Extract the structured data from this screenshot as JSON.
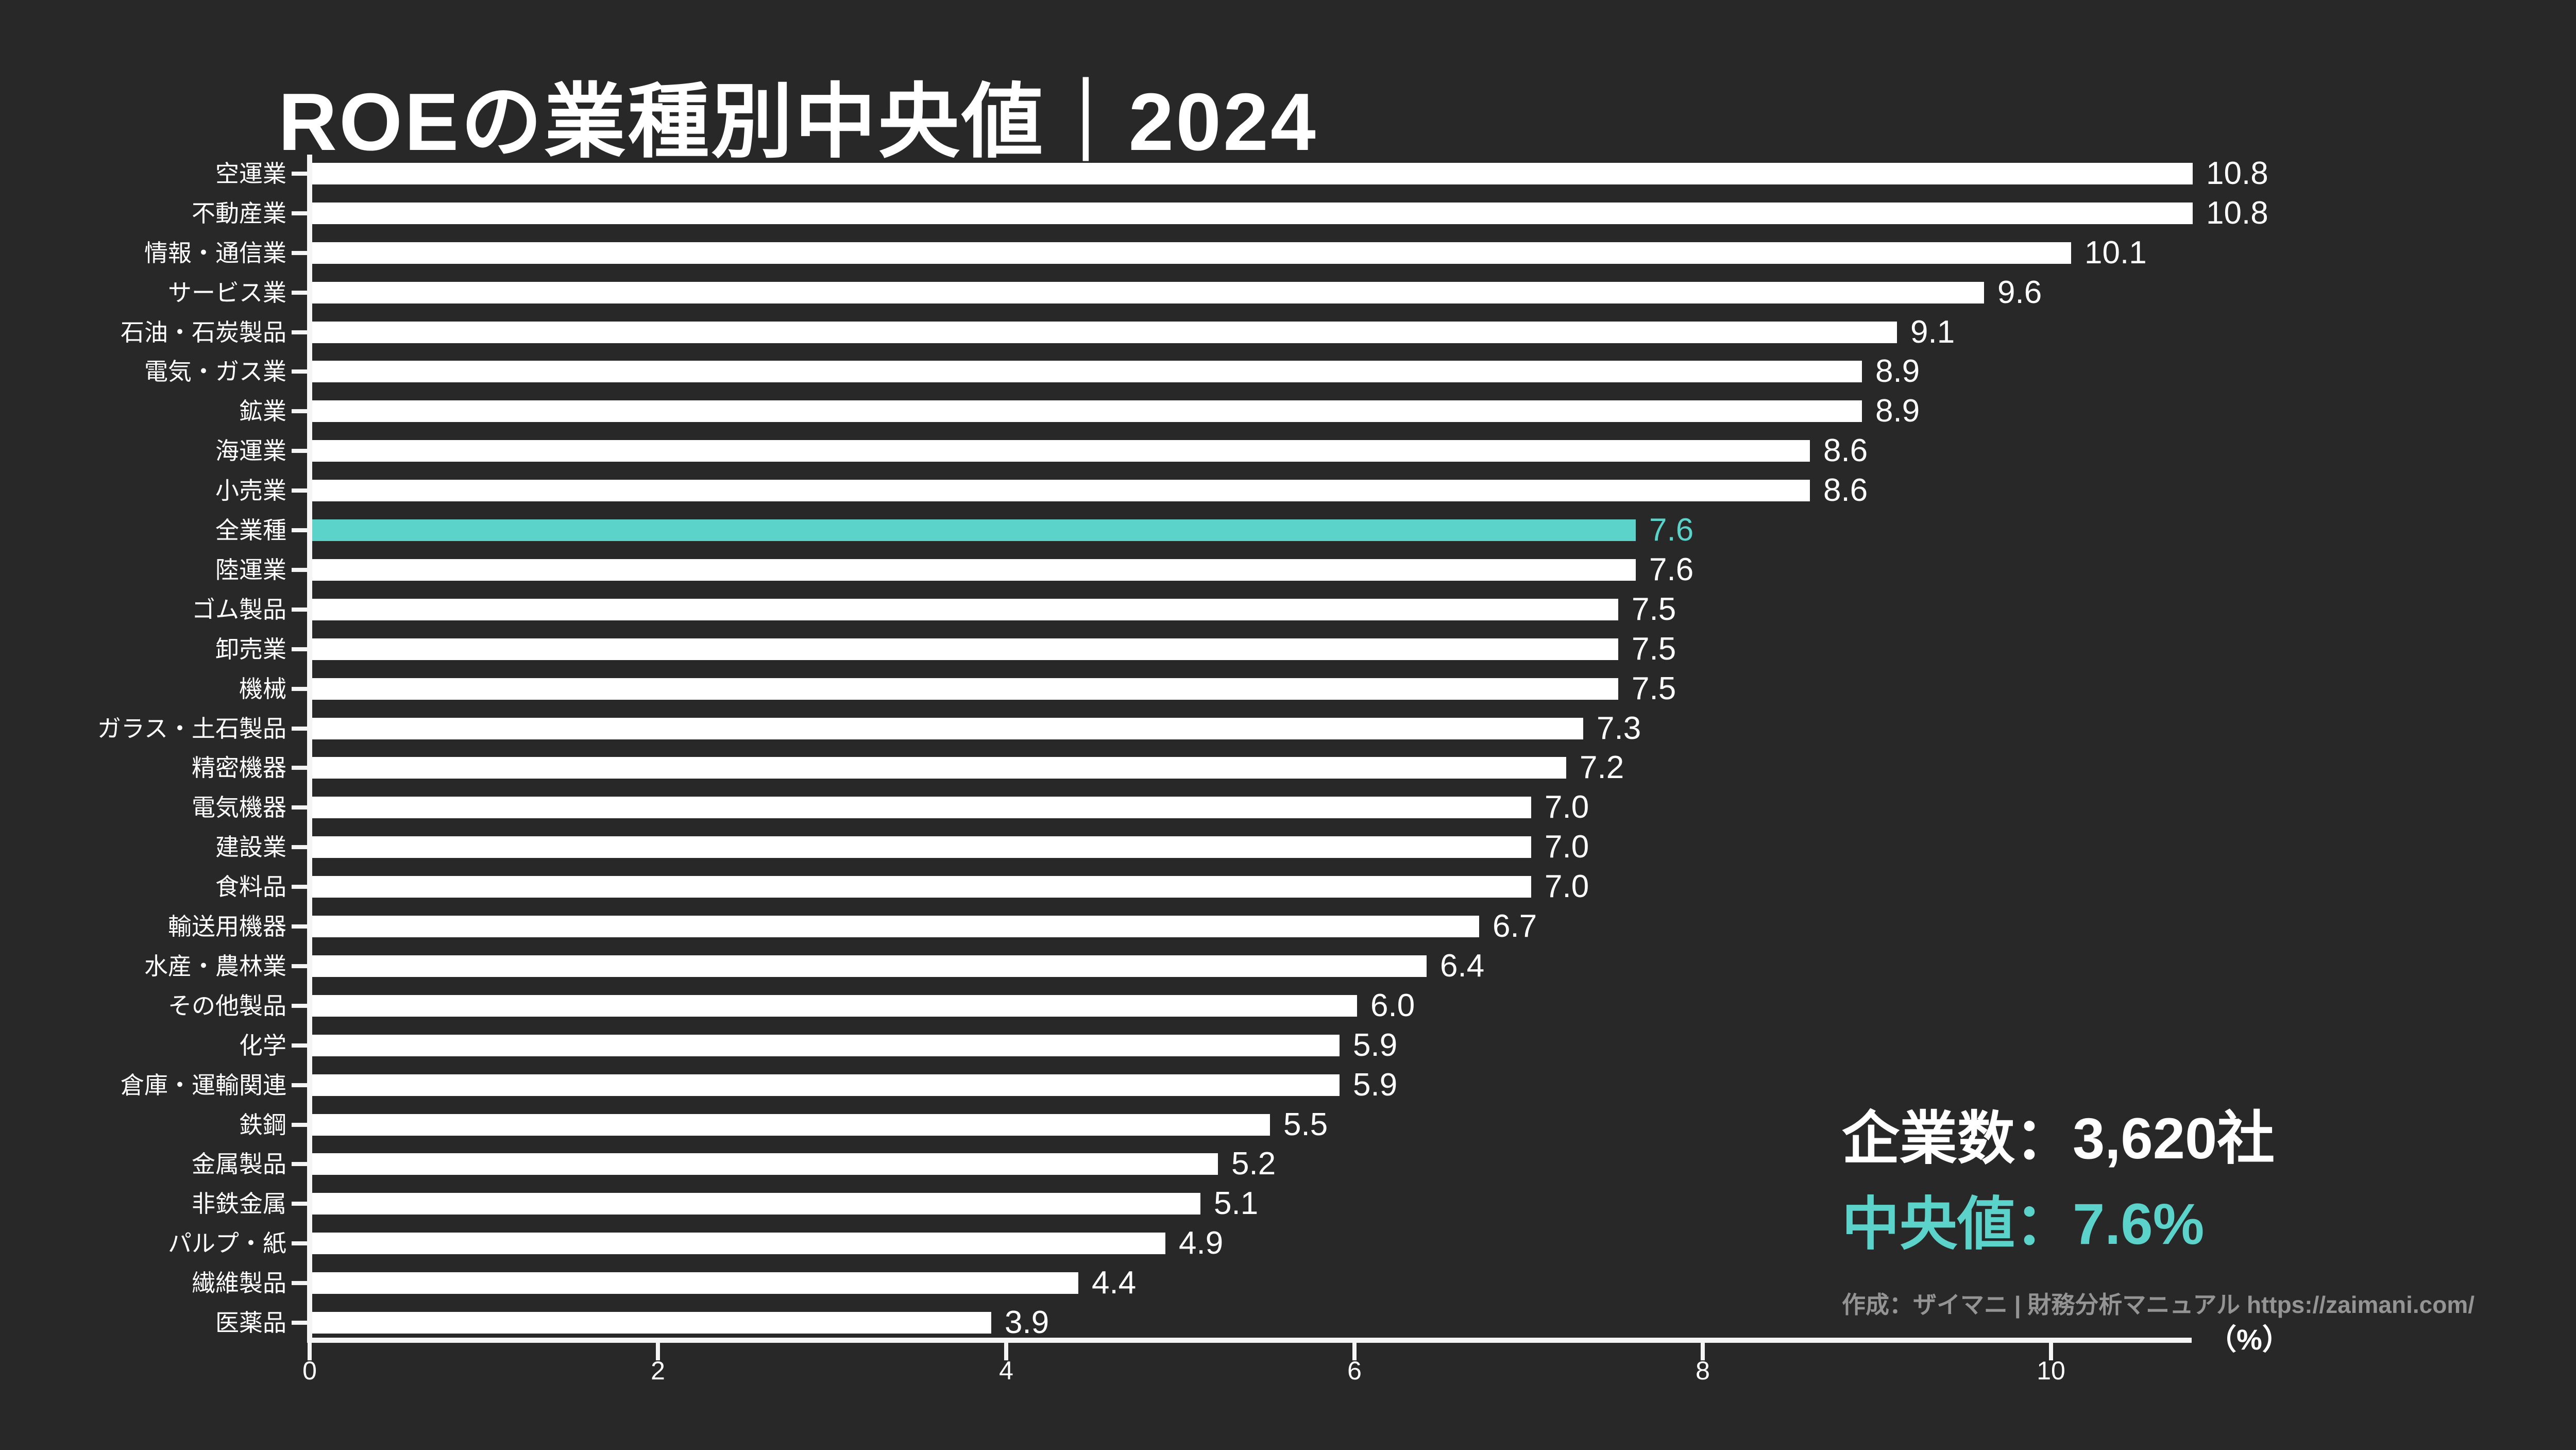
{
  "title": "ROEの業種別中央値｜2024",
  "chart_data": {
    "type": "bar",
    "orientation": "horizontal",
    "title": "ROEの業種別中央値｜2024",
    "xlabel": "（%）",
    "x_ticks": [
      0,
      2,
      4,
      6,
      8,
      10
    ],
    "xlim": [
      0,
      10.8
    ],
    "grid": false,
    "bar_color": "#ffffff",
    "highlight_color": "#5cd3ca",
    "highlight_category": "全業種",
    "bars": [
      {
        "label": "空運業",
        "value": 10.8,
        "display": "10.8",
        "highlight": false
      },
      {
        "label": "不動産業",
        "value": 10.8,
        "display": "10.8",
        "highlight": false
      },
      {
        "label": "情報・通信業",
        "value": 10.1,
        "display": "10.1",
        "highlight": false
      },
      {
        "label": "サービス業",
        "value": 9.6,
        "display": "9.6",
        "highlight": false
      },
      {
        "label": "石油・石炭製品",
        "value": 9.1,
        "display": "9.1",
        "highlight": false
      },
      {
        "label": "電気・ガス業",
        "value": 8.9,
        "display": "8.9",
        "highlight": false
      },
      {
        "label": "鉱業",
        "value": 8.9,
        "display": "8.9",
        "highlight": false
      },
      {
        "label": "海運業",
        "value": 8.6,
        "display": "8.6",
        "highlight": false
      },
      {
        "label": "小売業",
        "value": 8.6,
        "display": "8.6",
        "highlight": false
      },
      {
        "label": "全業種",
        "value": 7.6,
        "display": "7.6",
        "highlight": true
      },
      {
        "label": "陸運業",
        "value": 7.6,
        "display": "7.6",
        "highlight": false
      },
      {
        "label": "ゴム製品",
        "value": 7.5,
        "display": "7.5",
        "highlight": false
      },
      {
        "label": "卸売業",
        "value": 7.5,
        "display": "7.5",
        "highlight": false
      },
      {
        "label": "機械",
        "value": 7.5,
        "display": "7.5",
        "highlight": false
      },
      {
        "label": "ガラス・土石製品",
        "value": 7.3,
        "display": "7.3",
        "highlight": false
      },
      {
        "label": "精密機器",
        "value": 7.2,
        "display": "7.2",
        "highlight": false
      },
      {
        "label": "電気機器",
        "value": 7.0,
        "display": "7.0",
        "highlight": false
      },
      {
        "label": "建設業",
        "value": 7.0,
        "display": "7.0",
        "highlight": false
      },
      {
        "label": "食料品",
        "value": 7.0,
        "display": "7.0",
        "highlight": false
      },
      {
        "label": "輸送用機器",
        "value": 6.7,
        "display": "6.7",
        "highlight": false
      },
      {
        "label": "水産・農林業",
        "value": 6.4,
        "display": "6.4",
        "highlight": false
      },
      {
        "label": "その他製品",
        "value": 6.0,
        "display": "6.0",
        "highlight": false
      },
      {
        "label": "化学",
        "value": 5.9,
        "display": "5.9",
        "highlight": false
      },
      {
        "label": "倉庫・運輸関連",
        "value": 5.9,
        "display": "5.9",
        "highlight": false
      },
      {
        "label": "鉄鋼",
        "value": 5.5,
        "display": "5.5",
        "highlight": false
      },
      {
        "label": "金属製品",
        "value": 5.2,
        "display": "5.2",
        "highlight": false
      },
      {
        "label": "非鉄金属",
        "value": 5.1,
        "display": "5.1",
        "highlight": false
      },
      {
        "label": "パルプ・紙",
        "value": 4.9,
        "display": "4.9",
        "highlight": false
      },
      {
        "label": "繊維製品",
        "value": 4.4,
        "display": "4.4",
        "highlight": false
      },
      {
        "label": "医薬品",
        "value": 3.9,
        "display": "3.9",
        "highlight": false
      }
    ]
  },
  "stats": {
    "companies_label": "企業数：3,620社",
    "median_label": "中央値：7.6%",
    "attribution": "作成：ザイマニ | 財務分析マニュアル https://zaimani.com/"
  },
  "colors": {
    "background": "#282828",
    "bar": "#ffffff",
    "highlight": "#5cd3ca",
    "axis": "#f5f5f5",
    "attribution_text": "#949494"
  }
}
